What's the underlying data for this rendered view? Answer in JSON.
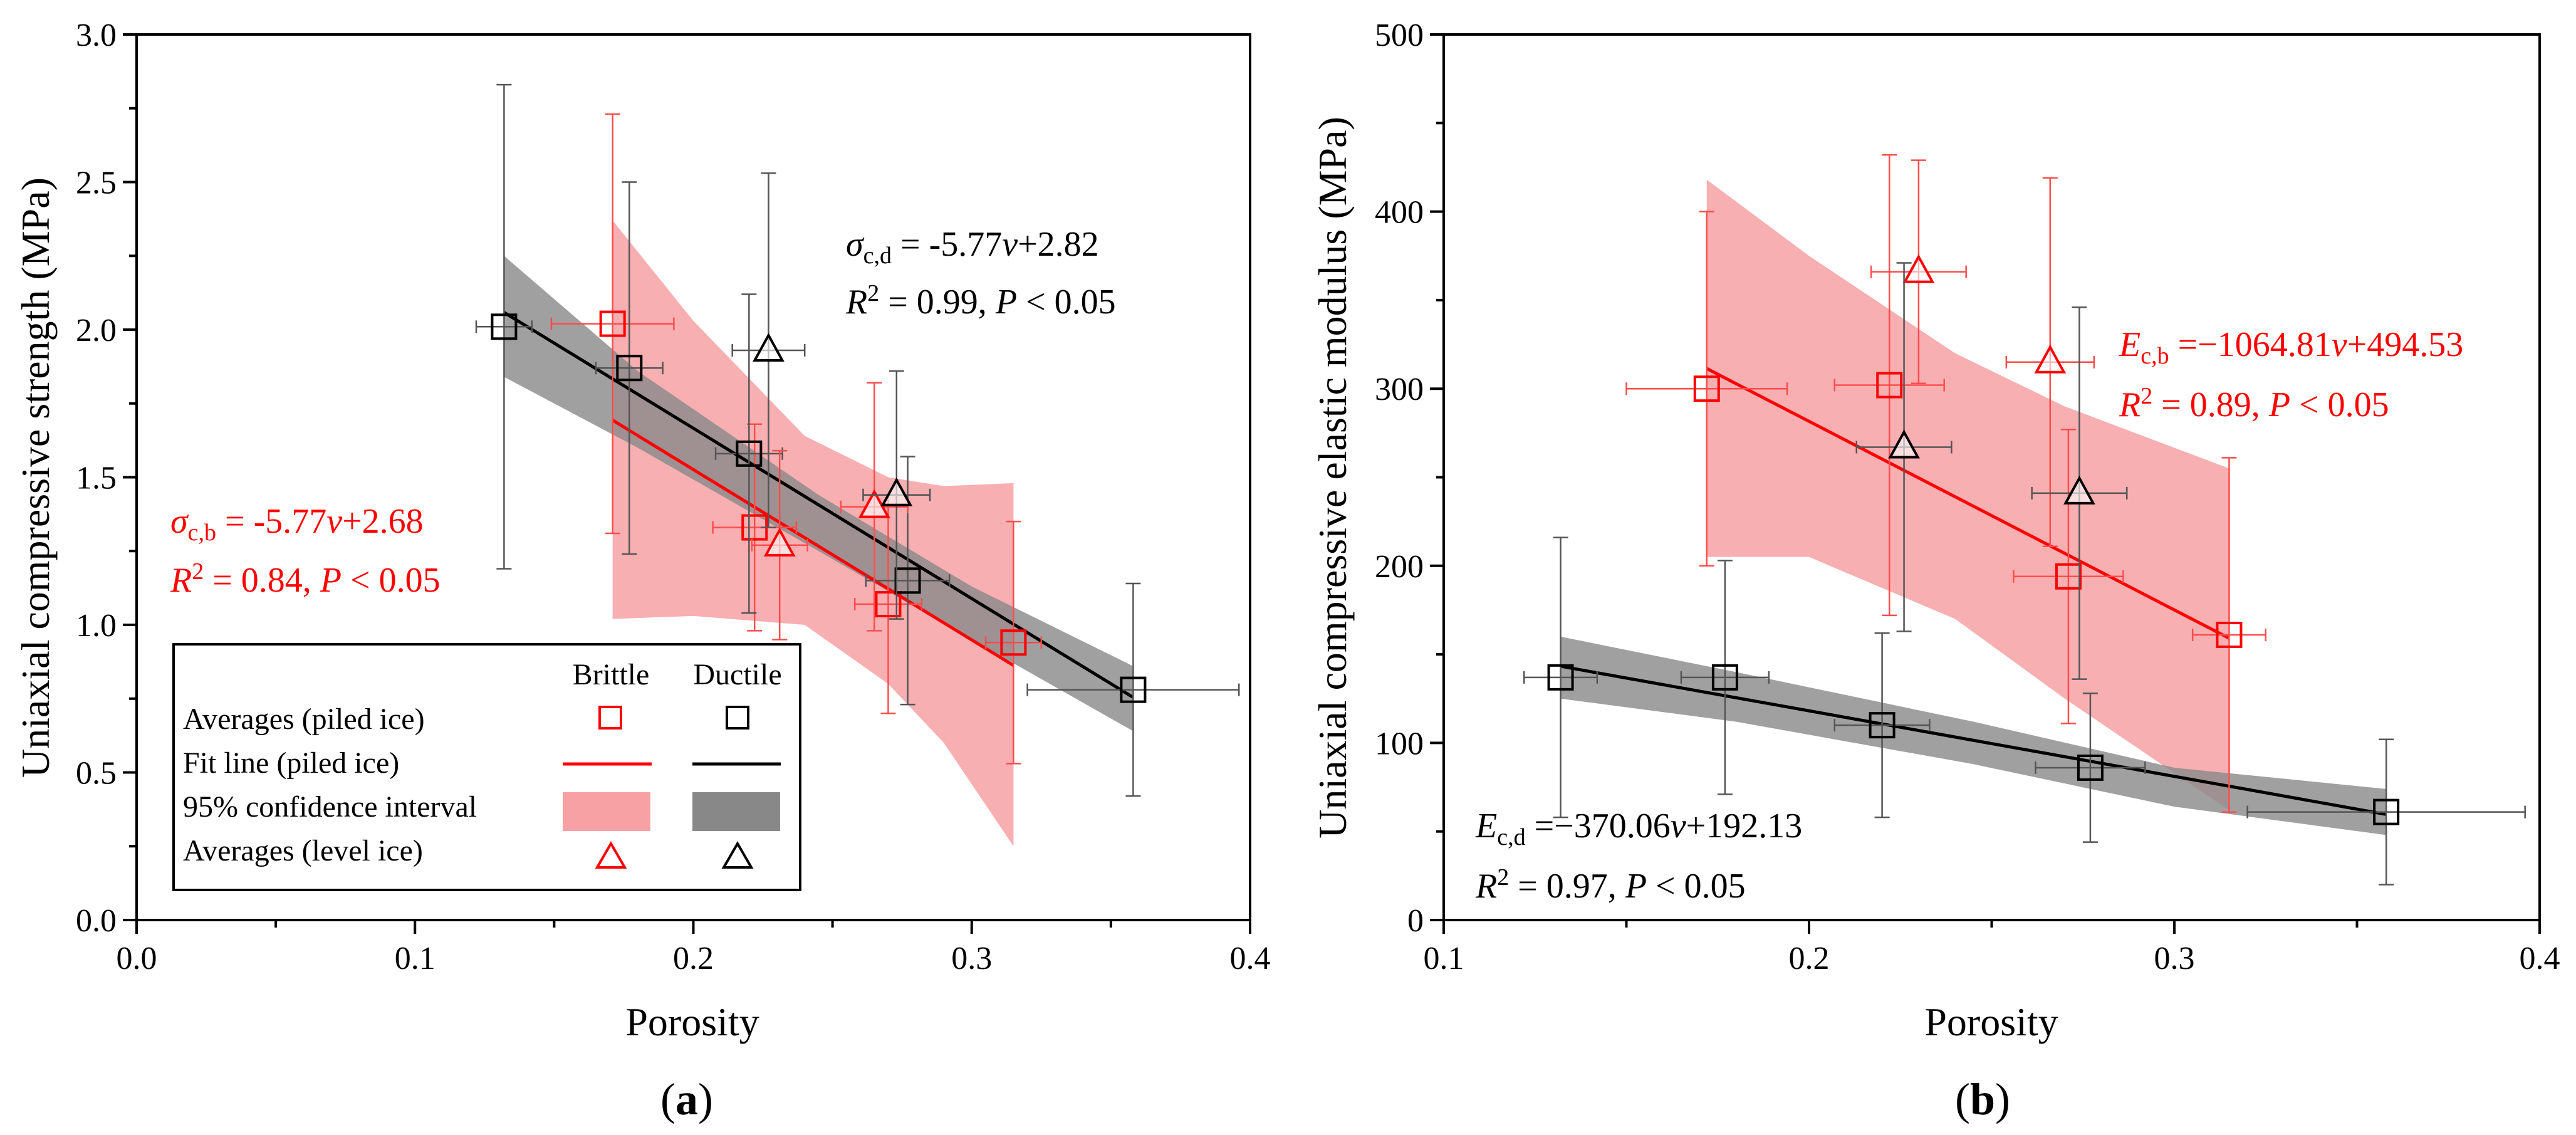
{
  "colors": {
    "brittle": "#ff0000",
    "ductile": "#000000",
    "brittle_band": "#f7a1a5",
    "ductile_band": "#888888"
  },
  "chart_data": [
    {
      "type": "scatter",
      "panel": "a",
      "panel_label": "a",
      "xlabel": "Porosity",
      "ylabel": "Uniaxial compressive strength (MPa)",
      "xlim": [
        0.0,
        0.4
      ],
      "ylim": [
        0.0,
        3.0
      ],
      "xticks": [
        0.0,
        0.1,
        0.2,
        0.3,
        0.4
      ],
      "xtick_labels": [
        "0.0",
        "0.1",
        "0.2",
        "0.3",
        "0.4"
      ],
      "yticks": [
        0.0,
        0.5,
        1.0,
        1.5,
        2.0,
        2.5,
        3.0
      ],
      "ytick_labels": [
        "0.0",
        "0.5",
        "1.0",
        "1.5",
        "2.0",
        "2.5",
        "3.0"
      ],
      "series": [
        {
          "name": "Brittle averages (piled ice)",
          "marker": "square",
          "color": "#ff0000",
          "points": [
            {
              "x": 0.171,
              "y": 2.02,
              "xerr": 0.022,
              "yerr": 0.71
            },
            {
              "x": 0.222,
              "y": 1.33,
              "xerr": 0.015,
              "yerr": 0.35
            },
            {
              "x": 0.27,
              "y": 1.07,
              "xerr": 0.012,
              "yerr": 0.37
            },
            {
              "x": 0.315,
              "y": 0.94,
              "xerr": 0.01,
              "yerr": 0.41
            }
          ]
        },
        {
          "name": "Ductile averages (piled ice)",
          "marker": "square",
          "color": "#000000",
          "points": [
            {
              "x": 0.132,
              "y": 2.01,
              "xerr": 0.01,
              "yerr": 0.82
            },
            {
              "x": 0.177,
              "y": 1.87,
              "xerr": 0.012,
              "yerr": 0.63
            },
            {
              "x": 0.22,
              "y": 1.58,
              "xerr": 0.012,
              "yerr": 0.54
            },
            {
              "x": 0.277,
              "y": 1.15,
              "xerr": 0.015,
              "yerr": 0.42
            },
            {
              "x": 0.358,
              "y": 0.78,
              "xerr": 0.038,
              "yerr": 0.36
            }
          ]
        },
        {
          "name": "Brittle averages (level ice)",
          "marker": "triangle",
          "color": "#ff0000",
          "points": [
            {
              "x": 0.231,
              "y": 1.27,
              "xerr": 0.01,
              "yerr": 0.32
            },
            {
              "x": 0.265,
              "y": 1.4,
              "xerr": 0.012,
              "yerr": 0.42
            }
          ]
        },
        {
          "name": "Ductile averages (level ice)",
          "marker": "triangle",
          "color": "#000000",
          "points": [
            {
              "x": 0.227,
              "y": 1.93,
              "xerr": 0.013,
              "yerr": 0.6
            },
            {
              "x": 0.273,
              "y": 1.44,
              "xerr": 0.012,
              "yerr": 0.42
            }
          ]
        }
      ],
      "fits": [
        {
          "name": "Brittle fit",
          "color": "#ff0000",
          "slope": -5.77,
          "intercept": 2.68,
          "x_range": [
            0.171,
            0.315
          ],
          "ci_upper": [
            [
              0.171,
              2.37
            ],
            [
              0.2,
              2.03
            ],
            [
              0.24,
              1.64
            ],
            [
              0.27,
              1.5
            ],
            [
              0.29,
              1.47
            ],
            [
              0.315,
              1.48
            ]
          ],
          "ci_lower": [
            [
              0.171,
              1.02
            ],
            [
              0.2,
              1.03
            ],
            [
              0.24,
              1.0
            ],
            [
              0.27,
              0.8
            ],
            [
              0.29,
              0.6
            ],
            [
              0.315,
              0.25
            ]
          ]
        },
        {
          "name": "Ductile fit",
          "color": "#000000",
          "slope": -5.77,
          "intercept": 2.82,
          "x_range": [
            0.132,
            0.358
          ],
          "ci_upper": [
            [
              0.132,
              2.25
            ],
            [
              0.18,
              1.86
            ],
            [
              0.245,
              1.44
            ],
            [
              0.3,
              1.13
            ],
            [
              0.358,
              0.86
            ]
          ],
          "ci_lower": [
            [
              0.132,
              1.84
            ],
            [
              0.18,
              1.6
            ],
            [
              0.245,
              1.25
            ],
            [
              0.3,
              0.95
            ],
            [
              0.358,
              0.64
            ]
          ]
        }
      ],
      "annotations": {
        "ductile_eq": {
          "sym": "σ",
          "sub": "c,d",
          "rest": " = -5.77",
          "var": "v",
          "tail": "+2.82"
        },
        "ductile_r2": {
          "r": "R",
          "sup": "2",
          "rest": " = 0.99, ",
          "p": "P",
          "tail": " < 0.05"
        },
        "brittle_eq": {
          "sym": "σ",
          "sub": "c,b",
          "rest": " = -5.77",
          "var": "v",
          "tail": "+2.68"
        },
        "brittle_r2": {
          "r": "R",
          "sup": "2",
          "rest": " = 0.84, ",
          "p": "P",
          "tail": " < 0.05"
        }
      },
      "legend": {
        "placement": "bottom-left",
        "col_brittle": "Brittle",
        "col_ductile": "Ductile",
        "rows": [
          "Averages (piled ice)",
          "Fit line (piled ice)",
          "95% confidence interval",
          "Averages (level ice)"
        ]
      }
    },
    {
      "type": "scatter",
      "panel": "b",
      "panel_label": "b",
      "xlabel": "Porosity",
      "ylabel": "Uniaxial compressive elastic modulus (MPa)",
      "xlim": [
        0.1,
        0.4
      ],
      "ylim": [
        0,
        500
      ],
      "xticks": [
        0.1,
        0.2,
        0.3,
        0.4
      ],
      "xtick_labels": [
        "0.1",
        "0.2",
        "0.3",
        "0.4"
      ],
      "yticks": [
        0,
        100,
        200,
        300,
        400,
        500
      ],
      "ytick_labels": [
        "0",
        "100",
        "200",
        "300",
        "400",
        "500"
      ],
      "series": [
        {
          "name": "Brittle averages (piled ice)",
          "marker": "square",
          "color": "#ff0000",
          "points": [
            {
              "x": 0.172,
              "y": 300,
              "xerr": 0.022,
              "yerr": 100
            },
            {
              "x": 0.222,
              "y": 302,
              "xerr": 0.015,
              "yerr": 130
            },
            {
              "x": 0.271,
              "y": 194,
              "xerr": 0.015,
              "yerr": 83
            },
            {
              "x": 0.315,
              "y": 161,
              "xerr": 0.01,
              "yerr": 100
            }
          ]
        },
        {
          "name": "Ductile averages (piled ice)",
          "marker": "square",
          "color": "#000000",
          "points": [
            {
              "x": 0.132,
              "y": 137,
              "xerr": 0.01,
              "yerr": 79
            },
            {
              "x": 0.177,
              "y": 137,
              "xerr": 0.012,
              "yerr": 66
            },
            {
              "x": 0.22,
              "y": 110,
              "xerr": 0.013,
              "yerr": 52
            },
            {
              "x": 0.277,
              "y": 86,
              "xerr": 0.015,
              "yerr": 42
            },
            {
              "x": 0.358,
              "y": 61,
              "xerr": 0.038,
              "yerr": 41
            }
          ]
        },
        {
          "name": "Brittle averages (level ice)",
          "marker": "triangle",
          "color": "#ff0000",
          "points": [
            {
              "x": 0.23,
              "y": 366,
              "xerr": 0.013,
              "yerr": 63
            },
            {
              "x": 0.266,
              "y": 315,
              "xerr": 0.012,
              "yerr": 104
            }
          ]
        },
        {
          "name": "Ductile averages (level ice)",
          "marker": "triangle",
          "color": "#000000",
          "points": [
            {
              "x": 0.226,
              "y": 267,
              "xerr": 0.013,
              "yerr": 104
            },
            {
              "x": 0.274,
              "y": 241,
              "xerr": 0.013,
              "yerr": 105
            }
          ]
        }
      ],
      "fits": [
        {
          "name": "Brittle fit",
          "color": "#ff0000",
          "slope": -1064.81,
          "intercept": 494.53,
          "x_range": [
            0.172,
            0.315
          ],
          "ci_upper": [
            [
              0.172,
              418
            ],
            [
              0.2,
              375
            ],
            [
              0.24,
              320
            ],
            [
              0.27,
              290
            ],
            [
              0.315,
              255
            ]
          ],
          "ci_lower": [
            [
              0.172,
              205
            ],
            [
              0.2,
              205
            ],
            [
              0.24,
              170
            ],
            [
              0.27,
              125
            ],
            [
              0.315,
              62
            ]
          ]
        },
        {
          "name": "Ductile fit",
          "color": "#000000",
          "slope": -370.06,
          "intercept": 192.13,
          "x_range": [
            0.132,
            0.358
          ],
          "ci_upper": [
            [
              0.132,
              160
            ],
            [
              0.18,
              140
            ],
            [
              0.245,
              112
            ],
            [
              0.3,
              86
            ],
            [
              0.358,
              74
            ]
          ],
          "ci_lower": [
            [
              0.132,
              125
            ],
            [
              0.18,
              112
            ],
            [
              0.245,
              88
            ],
            [
              0.3,
              64
            ],
            [
              0.358,
              48
            ]
          ]
        }
      ],
      "annotations": {
        "brittle_eq": {
          "sym": "E",
          "sub": "c,b",
          "rest": " =−1064.81",
          "var": "v",
          "tail": "+494.53"
        },
        "brittle_r2": {
          "r": "R",
          "sup": "2",
          "rest": " = 0.89, ",
          "p": "P",
          "tail": " < 0.05"
        },
        "ductile_eq": {
          "sym": "E",
          "sub": "c,d",
          "rest": " =−370.06",
          "var": "v",
          "tail": "+192.13"
        },
        "ductile_r2": {
          "r": "R",
          "sup": "2",
          "rest": " = 0.97, ",
          "p": "P",
          "tail": " < 0.05"
        }
      }
    }
  ]
}
